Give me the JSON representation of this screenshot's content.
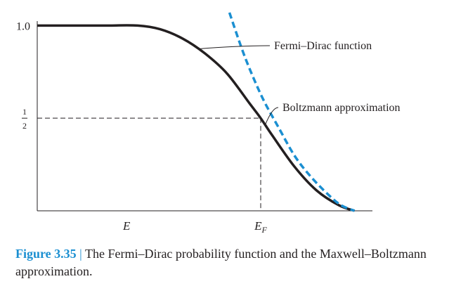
{
  "chart_data": {
    "type": "line",
    "title": "",
    "xlabel": "",
    "ylabel": "",
    "xlim": [
      0,
      1.5
    ],
    "ylim": [
      0,
      1.1
    ],
    "x_ticks": [
      {
        "label": "E",
        "value": 0.4
      },
      {
        "label": "E",
        "sub": "F",
        "value": 1.0
      }
    ],
    "y_ticks": [
      {
        "label": "1.0",
        "value": 1.0
      },
      {
        "label_num": "1",
        "label_den": "2",
        "value": 0.5
      }
    ],
    "guide_lines": [
      {
        "x": 1.0,
        "y": 0.5,
        "style": "dashed"
      }
    ],
    "series": [
      {
        "name": "Fermi–Dirac function",
        "style": "solid",
        "color": "#231f20",
        "x": [
          0.0,
          0.15,
          0.3,
          0.45,
          0.55,
          0.65,
          0.75,
          0.85,
          0.95,
          1.0,
          1.05,
          1.15,
          1.25,
          1.35,
          1.42
        ],
        "y": [
          1.0,
          1.0,
          1.0,
          1.0,
          0.98,
          0.93,
          0.85,
          0.74,
          0.58,
          0.5,
          0.41,
          0.24,
          0.11,
          0.03,
          0.0
        ]
      },
      {
        "name": "Boltzmann approximation",
        "style": "dashed",
        "color": "#1b8fd1",
        "x": [
          0.86,
          0.92,
          0.97,
          1.02,
          1.08,
          1.15,
          1.22,
          1.3,
          1.36,
          1.42
        ],
        "y": [
          1.07,
          0.86,
          0.71,
          0.58,
          0.45,
          0.3,
          0.19,
          0.09,
          0.03,
          0.0
        ]
      }
    ],
    "annotations": [
      {
        "text": "Fermi–Dirac function",
        "target_series": 0,
        "target_x": 0.72
      },
      {
        "text": "Boltzmann approximation",
        "target_series": 0,
        "target_x": 1.02
      }
    ]
  },
  "caption": {
    "number": "Figure 3.35",
    "separator": "|",
    "text": "The Fermi–Dirac probability function and the Maxwell–Boltzmann approximation."
  },
  "colors": {
    "accent": "#1b8fd1",
    "ink": "#231f20"
  }
}
